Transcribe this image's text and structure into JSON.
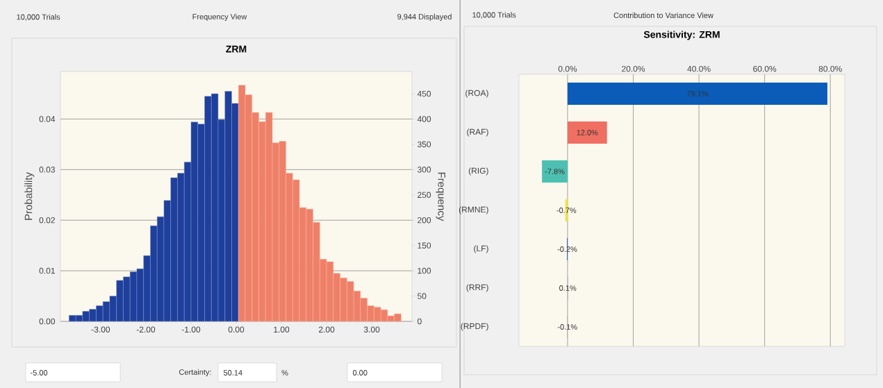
{
  "chart_data": [
    {
      "type": "histogram",
      "title": "ZRM",
      "ylabel": "Probability",
      "y2label": "Frequency",
      "annotations": [
        "10,000 Trials",
        "Frequency View",
        "9,944 Displayed",
        "-5.00",
        "Certainty:",
        "50.14",
        "%",
        "0.00"
      ],
      "bins": [
        -3.7,
        -3.55,
        -3.4,
        -3.25,
        -3.1,
        -2.95,
        -2.8,
        -2.65,
        -2.5,
        -2.35,
        -2.2,
        -2.05,
        -1.9,
        -1.75,
        -1.6,
        -1.45,
        -1.3,
        -1.15,
        -1.0,
        -0.85,
        -0.7,
        -0.55,
        -0.4,
        -0.25,
        -0.1,
        0.05,
        0.2,
        0.35,
        0.5,
        0.65,
        0.8,
        0.95,
        1.1,
        1.25,
        1.4,
        1.55,
        1.7,
        1.85,
        2.0,
        2.15,
        2.3,
        2.45,
        2.6,
        2.75,
        2.9,
        3.05,
        3.2,
        3.35,
        3.5,
        3.65
      ],
      "values": [
        0.0012,
        0.0012,
        0.002,
        0.0024,
        0.0031,
        0.0039,
        0.005,
        0.0081,
        0.0088,
        0.0098,
        0.0104,
        0.013,
        0.0189,
        0.0207,
        0.0239,
        0.0284,
        0.0293,
        0.0315,
        0.0394,
        0.039,
        0.0445,
        0.045,
        0.0399,
        0.0455,
        0.0431,
        0.0467,
        0.0448,
        0.0413,
        0.0395,
        0.0413,
        0.0353,
        0.0356,
        0.0293,
        0.028,
        0.0225,
        0.0222,
        0.0196,
        0.0123,
        0.0118,
        0.0095,
        0.0086,
        0.0079,
        0.006,
        0.0046,
        0.0031,
        0.0028,
        0.0023,
        0.0011,
        0.0015
      ],
      "colors": [
        "#1e3f9c",
        "#1e3f9c",
        "#1e3f9c",
        "#1e3f9c",
        "#1e3f9c",
        "#1e3f9c",
        "#1e3f9c",
        "#1e3f9c",
        "#1e3f9c",
        "#1e3f9c",
        "#1e3f9c",
        "#1e3f9c",
        "#1e3f9c",
        "#1e3f9c",
        "#1e3f9c",
        "#1e3f9c",
        "#1e3f9c",
        "#1e3f9c",
        "#1e3f9c",
        "#1e3f9c",
        "#1e3f9c",
        "#1e3f9c",
        "#1e3f9c",
        "#1e3f9c",
        "#1e3f9c",
        "#ef8068",
        "#ef8068",
        "#ef8068",
        "#ef8068",
        "#ef8068",
        "#ef8068",
        "#ef8068",
        "#ef8068",
        "#ef8068",
        "#ef8068",
        "#ef8068",
        "#ef8068",
        "#ef8068",
        "#ef8068",
        "#ef8068",
        "#ef8068",
        "#ef8068",
        "#ef8068",
        "#ef8068",
        "#ef8068",
        "#ef8068",
        "#ef8068",
        "#ef8068",
        "#ef8068"
      ],
      "xlim": [
        -3.89,
        3.89
      ],
      "ylim": [
        0,
        0.0494
      ],
      "y2lim": [
        0,
        494
      ],
      "xticks": [
        {
          "value": -3,
          "label": "-3.00"
        },
        {
          "value": -2,
          "label": "-2.00"
        },
        {
          "value": -1,
          "label": "-1.00"
        },
        {
          "value": 0,
          "label": "0.00"
        },
        {
          "value": 1,
          "label": "1.00"
        },
        {
          "value": 2,
          "label": "2.00"
        },
        {
          "value": 3,
          "label": "3.00"
        }
      ],
      "yticks": [
        {
          "value": 0,
          "label": "0.00"
        },
        0.01,
        0.02,
        0.03,
        0.04
      ],
      "y2ticks": [
        0,
        50,
        100,
        150,
        200,
        250,
        300,
        350,
        400,
        450
      ],
      "grid": "y"
    },
    {
      "type": "bar",
      "orientation": "horizontal",
      "title": "Sensitivity: ZRM",
      "annotations": [
        "10,000 Trials",
        "Contribution to Variance View"
      ],
      "categories": [
        "(ROA)",
        "(RAF)",
        "(RIG)",
        "(RMNE)",
        "(LF)",
        "(RRF)",
        "(RPDF)"
      ],
      "values": [
        79.1,
        12.0,
        -7.8,
        -0.7,
        -0.2,
        0.1,
        -0.1
      ],
      "colors": [
        "#0b5cb8",
        "#ef6f62",
        "#4ec0b2",
        "#f2e43c",
        "#2a62c0",
        "#9a9ab8",
        "#b89a9a"
      ],
      "value_labels": [
        "79.1%",
        "12.0%",
        "-7.8%",
        "-0.7%",
        "-0.2%",
        "0.1%",
        "-0.1%"
      ],
      "xlim": [
        -14.8,
        84.4
      ],
      "xticks": [
        {
          "value": 0,
          "label": "0.0%"
        },
        {
          "value": 20,
          "label": "20.0%"
        },
        {
          "value": 40,
          "label": "40.0%"
        },
        {
          "value": 60,
          "label": "60.0%"
        },
        {
          "value": 80,
          "label": "80.0%"
        }
      ],
      "grid": "x"
    }
  ]
}
